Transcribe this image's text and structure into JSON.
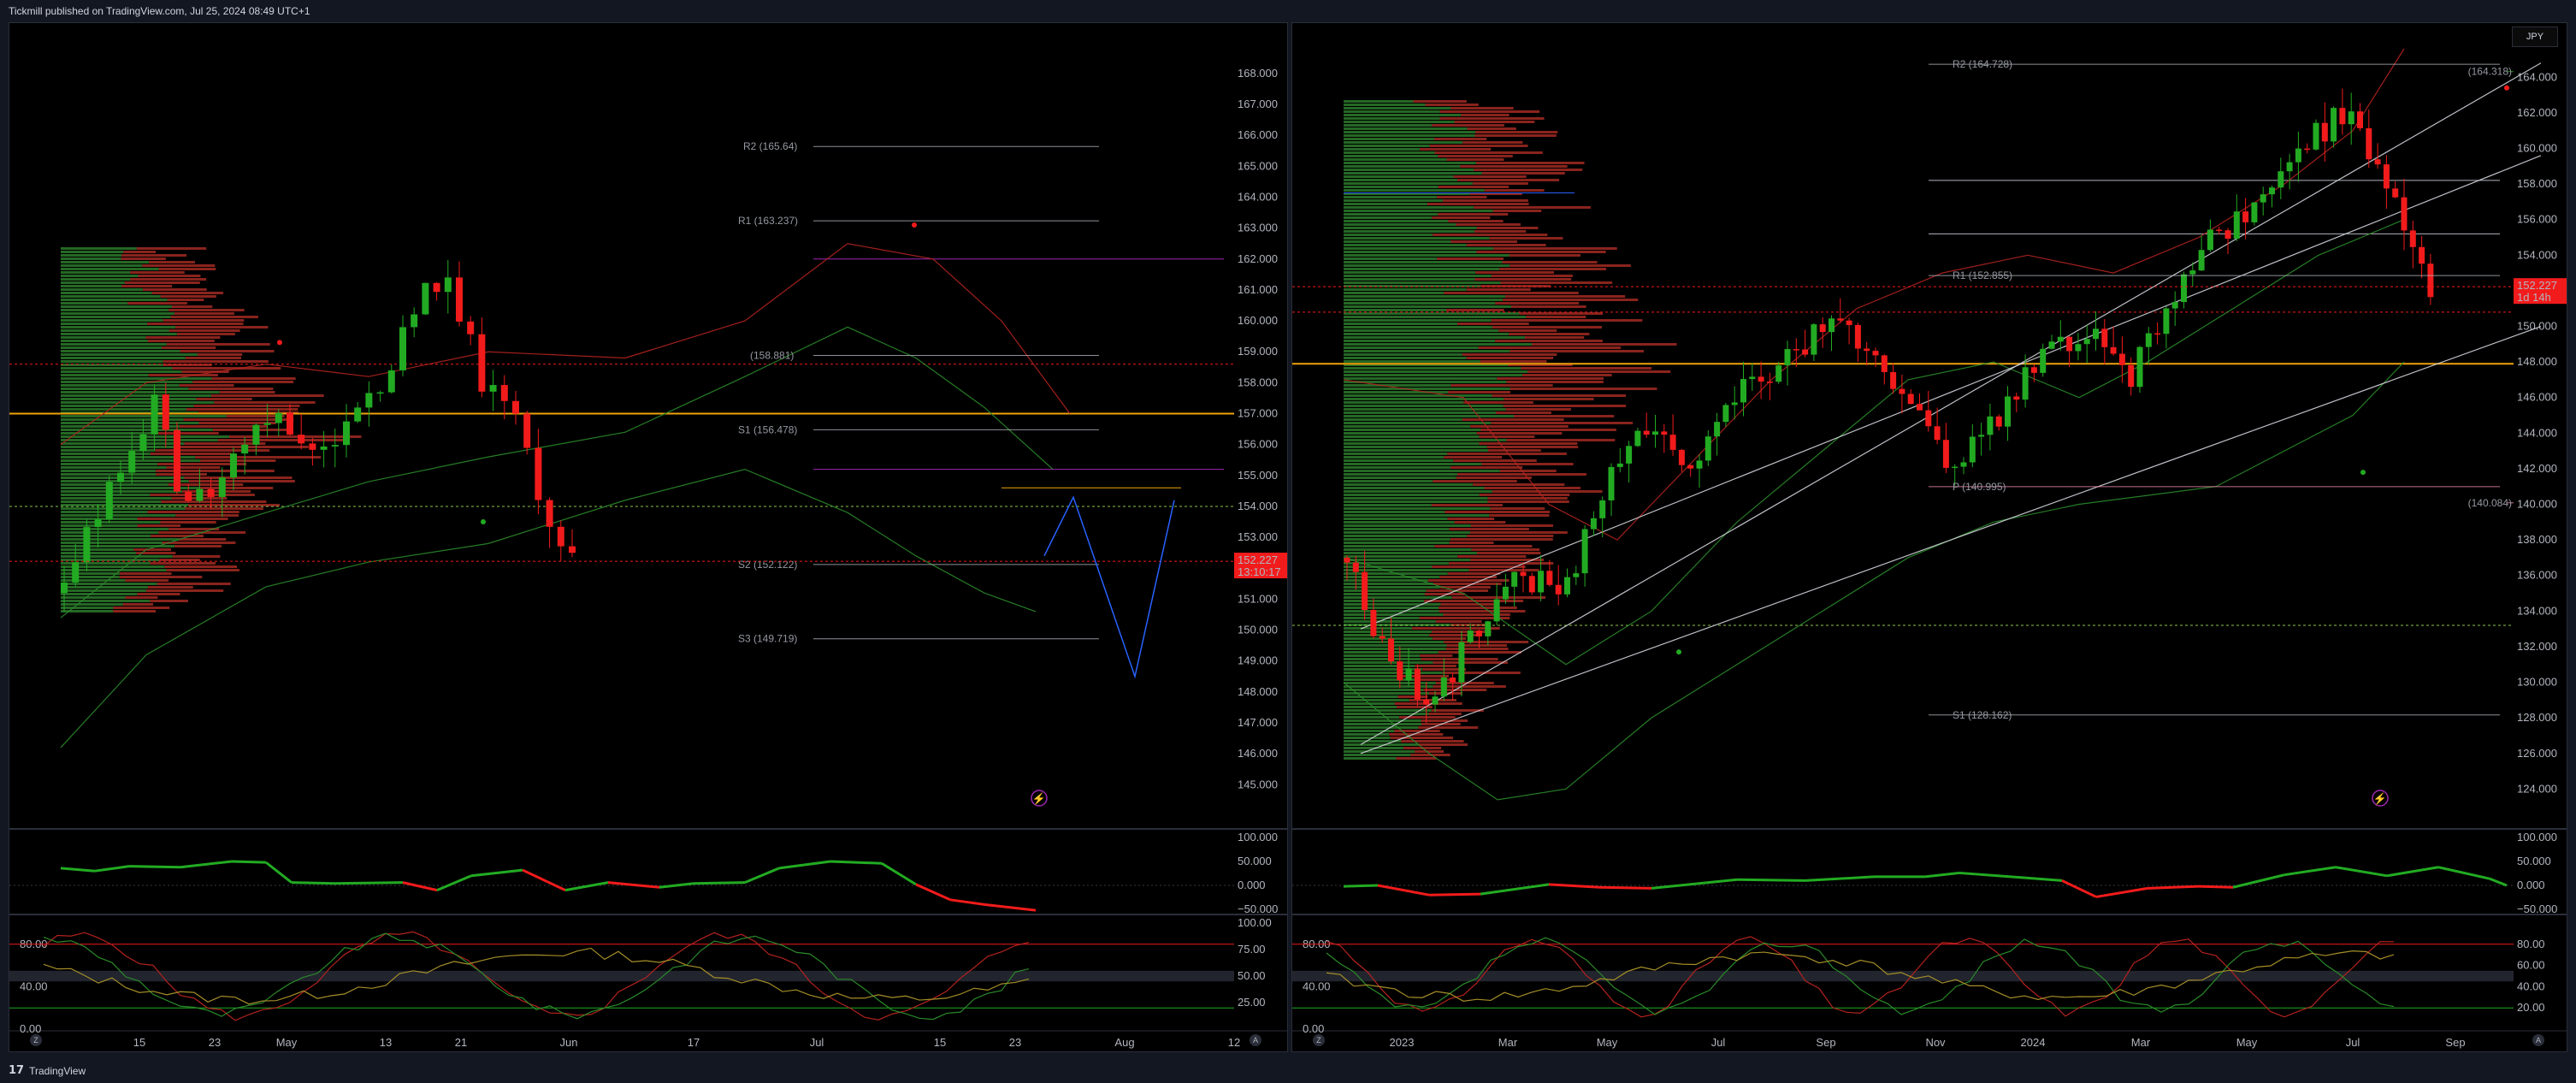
{
  "header": {
    "title": "Tickmill published on TradingView.com, Jul 25, 2024 08:49 UTC+1"
  },
  "footer": {
    "brand": "TradingView",
    "logo_text": "17"
  },
  "colors": {
    "bull": "#22ab22",
    "bear": "#f21b1b",
    "pivot": "#b2b5be",
    "env_red": "#b2231f",
    "env_green": "#2a8a2a",
    "profile_red": "#a12a22",
    "profile_green": "#2c7a2c",
    "orange": "#f0a30a",
    "purple": "#9c27b0",
    "blue": "#2962ff"
  },
  "left_chart": {
    "y_ticks": [
      "168.000",
      "167.000",
      "166.000",
      "165.000",
      "164.000",
      "163.000",
      "162.000",
      "161.000",
      "160.000",
      "159.000",
      "158.000",
      "157.000",
      "156.000",
      "155.000",
      "154.000",
      "153.000",
      "152.000",
      "151.000",
      "150.000",
      "149.000",
      "148.000",
      "147.000",
      "146.000",
      "145.000"
    ],
    "x_ticks": [
      "15",
      "23",
      "May",
      "13",
      "21",
      "Jun",
      "17",
      "Jul",
      "15",
      "23",
      "Aug",
      "12"
    ],
    "pivots": [
      {
        "label": "R2 (165.64)",
        "value": 165.64
      },
      {
        "label": "R1 (163.237)",
        "value": 163.237
      },
      {
        "label": "(158.881)",
        "value": 158.881
      },
      {
        "label": "S1 (156.478)",
        "value": 156.478
      },
      {
        "label": "S2 (152.122)",
        "value": 152.122
      },
      {
        "label": "S3 (149.719)",
        "value": 149.719
      }
    ],
    "last_price": "152.227",
    "countdown": "13:10:17",
    "osc_ticks": [
      "100.000",
      "50.000",
      "0.000",
      "−50.000"
    ],
    "stoch_ticks": [
      "100.00",
      "75.00",
      "50.00",
      "25.00"
    ],
    "stoch_left": [
      "80.00",
      "40.00",
      "0.00"
    ],
    "corner_left": "Z",
    "corner_right": "A"
  },
  "right_chart": {
    "y_ticks": [
      "164.000",
      "162.000",
      "160.000",
      "158.000",
      "156.000",
      "154.000",
      "152.000",
      "150.000",
      "148.000",
      "146.000",
      "144.000",
      "142.000",
      "140.000",
      "138.000",
      "136.000",
      "134.000",
      "132.000",
      "130.000",
      "128.000",
      "126.000",
      "124.000"
    ],
    "x_ticks": [
      "2023",
      "Mar",
      "May",
      "Jul",
      "Sep",
      "Nov",
      "2024",
      "Mar",
      "May",
      "Jul",
      "Sep"
    ],
    "pivots": [
      {
        "label": "R2 (164.728)",
        "value": 164.728
      },
      {
        "label": "(164.318)",
        "value": 164.318
      },
      {
        "label": "R1 (152.855)",
        "value": 152.855
      },
      {
        "label": "P (140.995)",
        "value": 140.995
      },
      {
        "label": "(140.084)",
        "value": 140.084
      },
      {
        "label": "S1 (128.162)",
        "value": 128.162
      }
    ],
    "currency": "JPY",
    "last_price": "152.227",
    "countdown": "1d 14h",
    "osc_ticks": [
      "100.000",
      "50.000",
      "0.000",
      "−50.000"
    ],
    "stoch_ticks": [
      "80.00",
      "60.00",
      "40.00",
      "20.00"
    ],
    "stoch_left": [
      "80.00",
      "40.00",
      "0.00"
    ],
    "corner_left": "Z",
    "corner_right": "A"
  }
}
